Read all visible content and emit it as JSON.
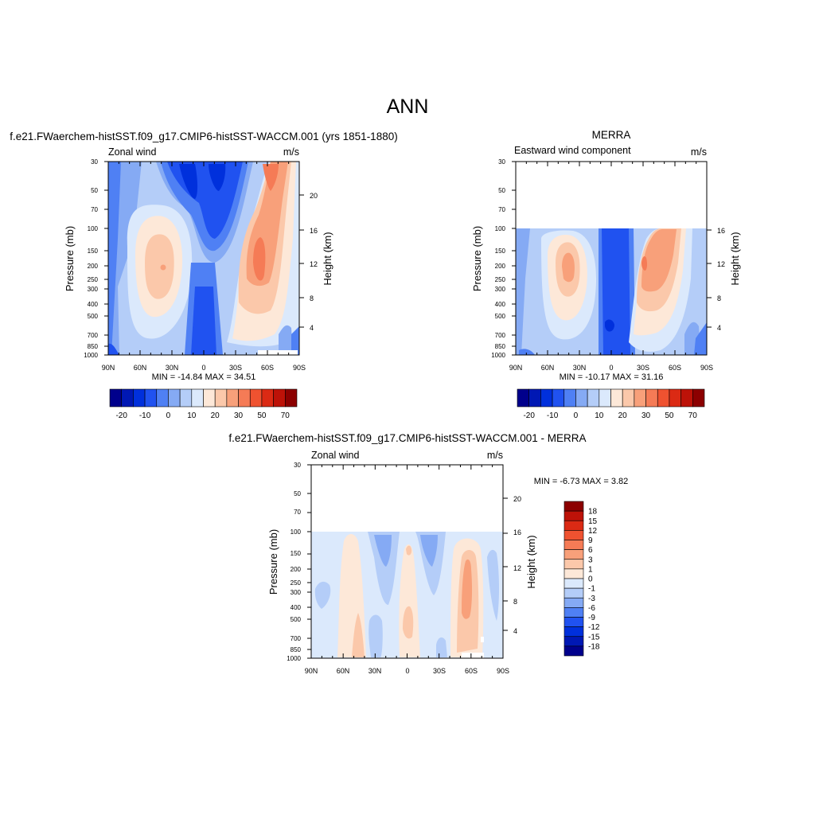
{
  "page": {
    "title": "ANN"
  },
  "chart_data": [
    {
      "type": "heatmap",
      "title": "f.e21.FWaerchem-histSST.f09_g17.CMIP6-histSST-WACCM.001 (yrs 1851-1880)",
      "left_label": "Zonal wind",
      "right_label": "m/s",
      "ylabel": "Pressure (mb)",
      "ylabel_right": "Height (km)",
      "x_ticks": [
        "90N",
        "60N",
        "30N",
        "0",
        "30S",
        "60S",
        "90S"
      ],
      "y_ticks": [
        "30",
        "50",
        "70",
        "100",
        "150",
        "200",
        "250",
        "300",
        "400",
        "500",
        "700",
        "850",
        "1000"
      ],
      "height_ticks": [
        "20",
        "16",
        "12",
        "8",
        "4"
      ],
      "stats": "MIN = -14.84  MAX =  34.51",
      "colorbar": {
        "orientation": "horizontal",
        "colors": [
          "#00008c",
          "#0018b4",
          "#0030dc",
          "#2052f0",
          "#4f80f4",
          "#85aaf4",
          "#b4cdf8",
          "#dbe9fc",
          "#fde8d8",
          "#fbc8aa",
          "#f8a07a",
          "#f57b56",
          "#ef5230",
          "#db2a14",
          "#bd1208",
          "#8c0000"
        ],
        "labels": [
          "-20",
          "-10",
          "0",
          "10",
          "20",
          "30",
          "50",
          "70"
        ]
      },
      "ylim": [
        1000,
        30
      ],
      "xlim": [
        90,
        -90
      ],
      "data_top": 30
    },
    {
      "type": "heatmap",
      "title": "MERRA",
      "left_label": "Eastward wind component",
      "right_label": "m/s",
      "ylabel": "Pressure (mb)",
      "ylabel_right": "Height (km)",
      "x_ticks": [
        "90N",
        "60N",
        "30N",
        "0",
        "30S",
        "60S",
        "90S"
      ],
      "y_ticks": [
        "30",
        "50",
        "70",
        "100",
        "150",
        "200",
        "250",
        "300",
        "400",
        "500",
        "700",
        "850",
        "1000"
      ],
      "height_ticks": [
        "16",
        "12",
        "8",
        "4"
      ],
      "stats": "MIN = -10.17  MAX =  31.16",
      "colorbar": {
        "orientation": "horizontal",
        "colors": [
          "#00008c",
          "#0018b4",
          "#0030dc",
          "#2052f0",
          "#4f80f4",
          "#85aaf4",
          "#b4cdf8",
          "#dbe9fc",
          "#fde8d8",
          "#fbc8aa",
          "#f8a07a",
          "#f57b56",
          "#ef5230",
          "#db2a14",
          "#bd1208",
          "#8c0000"
        ],
        "labels": [
          "-20",
          "-10",
          "0",
          "10",
          "20",
          "30",
          "50",
          "70"
        ]
      },
      "ylim": [
        1000,
        30
      ],
      "xlim": [
        90,
        -90
      ],
      "data_top": 100
    },
    {
      "type": "heatmap",
      "title": "f.e21.FWaerchem-histSST.f09_g17.CMIP6-histSST-WACCM.001 - MERRA",
      "left_label": "Zonal wind",
      "right_label": "m/s",
      "ylabel": "Pressure (mb)",
      "ylabel_right": "Height (km)",
      "x_ticks": [
        "90N",
        "60N",
        "30N",
        "0",
        "30S",
        "60S",
        "90S"
      ],
      "y_ticks": [
        "30",
        "50",
        "70",
        "100",
        "150",
        "200",
        "250",
        "300",
        "400",
        "500",
        "700",
        "850",
        "1000"
      ],
      "height_ticks": [
        "20",
        "16",
        "12",
        "8",
        "4"
      ],
      "stats": "MIN =  -6.73  MAX =   3.82",
      "colorbar": {
        "orientation": "vertical",
        "colors": [
          "#00008c",
          "#0018b4",
          "#0030dc",
          "#2052f0",
          "#4f80f4",
          "#85aaf4",
          "#b4cdf8",
          "#dbe9fc",
          "#fde8d8",
          "#fbc8aa",
          "#f8a07a",
          "#f57b56",
          "#ef5230",
          "#db2a14",
          "#bd1208",
          "#8c0000"
        ],
        "labels": [
          "-18",
          "-15",
          "-12",
          "-9",
          "-6",
          "-3",
          "-1",
          "0",
          "1",
          "3",
          "6",
          "9",
          "12",
          "15",
          "18"
        ]
      },
      "ylim": [
        1000,
        30
      ],
      "xlim": [
        90,
        -90
      ],
      "data_top": 100
    }
  ]
}
